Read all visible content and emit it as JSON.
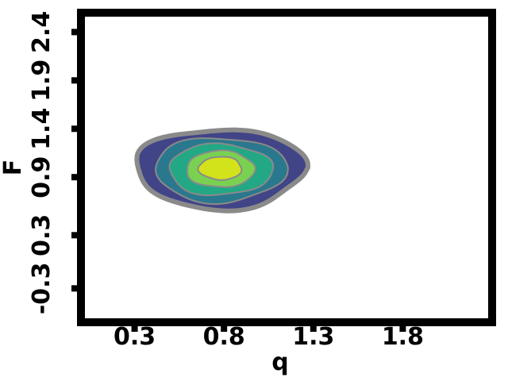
{
  "chart_data": {
    "type": "contour",
    "title": "",
    "xlabel": "q",
    "ylabel": "F",
    "xlim": [
      0.0,
      2.3
    ],
    "ylim": [
      -0.6,
      2.6
    ],
    "x_ticks": [
      {
        "value": 0.3,
        "label": "0.3"
      },
      {
        "value": 0.8,
        "label": "0.8"
      },
      {
        "value": 1.3,
        "label": "1.3"
      },
      {
        "value": 1.8,
        "label": "1.8"
      }
    ],
    "y_ticks": [
      {
        "value": -0.25,
        "label": "-0.3"
      },
      {
        "value": 0.3,
        "label": "0.3"
      },
      {
        "value": 0.9,
        "label": "0.9"
      },
      {
        "value": 1.4,
        "label": "1.4"
      },
      {
        "value": 1.9,
        "label": "1.9"
      },
      {
        "value": 2.4,
        "label": "2.4"
      }
    ],
    "contour_levels": [
      {
        "level": 1,
        "color": "#414487",
        "rx": [
          0.08,
          0.95
        ],
        "ry": [
          0.8,
          0.86
        ]
      },
      {
        "level": 2,
        "color": "#2a788e",
        "rx": [
          0.08,
          0.74
        ],
        "ry": [
          0.62,
          0.72
        ]
      },
      {
        "level": 3,
        "color": "#22a884",
        "rx": [
          0.06,
          0.58
        ],
        "ry": [
          0.48,
          0.58
        ]
      },
      {
        "level": 4,
        "color": "#7ad151",
        "rx": [
          0.06,
          0.38
        ],
        "ry": [
          0.34,
          0.42
        ]
      },
      {
        "level": 5,
        "color": "#d2e21b",
        "rx": [
          0.04,
          0.24
        ],
        "ry": [
          0.22,
          0.26
        ]
      }
    ],
    "contour_center": {
      "x": 0.78,
      "y": 1.0
    },
    "outline_color": "#8a8a8a",
    "grid": false,
    "legend": "none"
  }
}
